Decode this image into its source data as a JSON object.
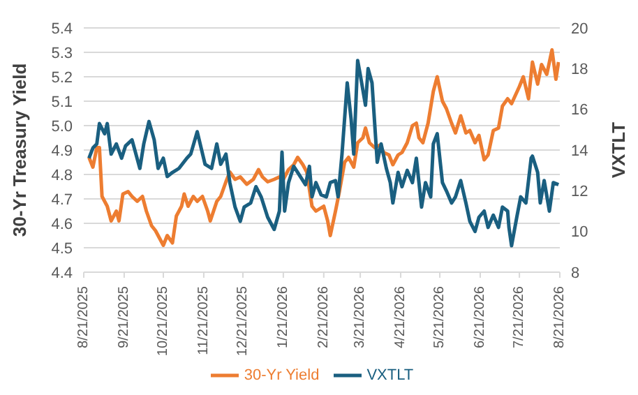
{
  "chart_data": {
    "type": "line",
    "ylabel": "30-Yr Treasury Yield",
    "y2label": "VXTLT",
    "grid": "y",
    "legend": "bottom",
    "marker": "none",
    "line_style": "solid",
    "xlim": [
      "2025-08-21",
      "2026-08-21"
    ],
    "xticks": [
      {
        "value": "2025-08-21",
        "label": "8/21/2025"
      },
      {
        "value": "2025-09-21",
        "label": "9/21/2025"
      },
      {
        "value": "2025-10-21",
        "label": "10/21/2025"
      },
      {
        "value": "2025-11-21",
        "label": "11/21/2025"
      },
      {
        "value": "2025-12-21",
        "label": "12/21/2025"
      },
      {
        "value": "2026-01-21",
        "label": "1/21/2026"
      },
      {
        "value": "2026-02-21",
        "label": "2/21/2026"
      },
      {
        "value": "2026-03-21",
        "label": "3/21/2026"
      },
      {
        "value": "2026-04-21",
        "label": "4/21/2026"
      },
      {
        "value": "2026-05-21",
        "label": "5/21/2026"
      },
      {
        "value": "2026-06-21",
        "label": "6/21/2026"
      },
      {
        "value": "2026-07-21",
        "label": "7/21/2026"
      },
      {
        "value": "2026-08-21",
        "label": "8/21/2026"
      }
    ],
    "ylim": [
      4.4,
      5.4
    ],
    "yticks": [
      4.4,
      4.5,
      4.6,
      4.7,
      4.8,
      4.9,
      {
        "value": 5,
        "label": "5.0"
      },
      5.1,
      5.2,
      5.3,
      5.4
    ],
    "y2lim": [
      8,
      20
    ],
    "y2ticks": [
      8,
      10,
      12,
      14,
      16,
      18,
      20
    ],
    "series": [
      {
        "name": "30-Yr Yield",
        "color": "#ed7d31",
        "x": [
          "2025-08-25",
          "2025-08-28",
          "2025-08-31",
          "2025-09-02",
          "2025-09-04",
          "2025-09-08",
          "2025-09-11",
          "2025-09-15",
          "2025-09-17",
          "2025-09-20",
          "2025-09-24",
          "2025-09-27",
          "2025-10-01",
          "2025-10-05",
          "2025-10-08",
          "2025-10-12",
          "2025-10-15",
          "2025-10-21",
          "2025-10-24",
          "2025-10-28",
          "2025-10-31",
          "2025-11-04",
          "2025-11-06",
          "2025-11-09",
          "2025-11-13",
          "2025-11-16",
          "2025-11-20",
          "2025-11-24",
          "2025-11-26",
          "2025-12-01",
          "2025-12-04",
          "2025-12-08",
          "2025-12-11",
          "2025-12-15",
          "2025-12-19",
          "2025-12-24",
          "2025-12-29",
          "2026-01-02",
          "2026-01-05",
          "2026-01-09",
          "2026-01-14",
          "2026-01-18",
          "2026-01-21",
          "2026-01-25",
          "2026-01-29",
          "2026-02-01",
          "2026-02-05",
          "2026-02-08",
          "2026-02-12",
          "2026-02-15",
          "2026-02-21",
          "2026-02-24",
          "2026-02-26",
          "2026-03-02",
          "2026-03-05",
          "2026-03-09",
          "2026-03-12",
          "2026-03-16",
          "2026-03-19",
          "2026-03-23",
          "2026-03-25",
          "2026-03-28",
          "2026-04-01",
          "2026-04-05",
          "2026-04-08",
          "2026-04-12",
          "2026-04-15",
          "2026-04-19",
          "2026-04-22",
          "2026-04-26",
          "2026-04-30",
          "2026-05-03",
          "2026-05-05",
          "2026-05-08",
          "2026-05-12",
          "2026-05-16",
          "2026-05-19",
          "2026-05-23",
          "2026-05-26",
          "2026-05-30",
          "2026-06-02",
          "2026-06-06",
          "2026-06-10",
          "2026-06-13",
          "2026-06-17",
          "2026-06-20",
          "2026-06-24",
          "2026-06-27",
          "2026-07-01",
          "2026-07-05",
          "2026-07-08",
          "2026-07-12",
          "2026-07-15",
          "2026-07-21",
          "2026-07-24",
          "2026-07-28",
          "2026-07-31",
          "2026-08-04",
          "2026-08-07",
          "2026-08-11",
          "2026-08-15",
          "2026-08-18",
          "2026-08-20"
        ],
        "values": [
          4.87,
          4.83,
          4.91,
          4.91,
          4.71,
          4.67,
          4.61,
          4.65,
          4.61,
          4.72,
          4.73,
          4.71,
          4.69,
          4.71,
          4.65,
          4.59,
          4.57,
          4.51,
          4.55,
          4.52,
          4.63,
          4.67,
          4.72,
          4.67,
          4.71,
          4.69,
          4.71,
          4.65,
          4.61,
          4.69,
          4.71,
          4.77,
          4.81,
          4.78,
          4.79,
          4.76,
          4.78,
          4.82,
          4.79,
          4.77,
          4.78,
          4.79,
          4.78,
          4.82,
          4.84,
          4.87,
          4.84,
          4.81,
          4.67,
          4.65,
          4.67,
          4.61,
          4.55,
          4.65,
          4.73,
          4.85,
          4.87,
          4.83,
          4.93,
          4.95,
          4.99,
          4.93,
          4.91,
          4.92,
          4.89,
          4.88,
          4.84,
          4.88,
          4.89,
          4.93,
          5.0,
          5.01,
          4.95,
          4.93,
          5.01,
          5.14,
          5.2,
          5.1,
          5.07,
          5.01,
          4.97,
          5.04,
          4.97,
          4.98,
          4.93,
          4.96,
          4.86,
          4.88,
          4.98,
          4.99,
          5.08,
          5.11,
          5.09,
          5.16,
          5.2,
          5.11,
          5.26,
          5.17,
          5.25,
          5.21,
          5.31,
          5.19,
          5.26
        ]
      },
      {
        "name": "VXTLT",
        "color": "#1a5f80",
        "axis": "y2",
        "x": [
          "2025-08-25",
          "2025-08-28",
          "2025-08-31",
          "2025-09-02",
          "2025-09-06",
          "2025-09-08",
          "2025-09-11",
          "2025-09-15",
          "2025-09-19",
          "2025-09-22",
          "2025-09-27",
          "2025-10-03",
          "2025-10-06",
          "2025-10-10",
          "2025-10-14",
          "2025-10-17",
          "2025-10-21",
          "2025-10-24",
          "2025-10-28",
          "2025-11-02",
          "2025-11-08",
          "2025-11-11",
          "2025-11-16",
          "2025-11-22",
          "2025-11-27",
          "2025-12-01",
          "2025-12-04",
          "2025-12-08",
          "2025-12-11",
          "2025-12-15",
          "2025-12-19",
          "2025-12-22",
          "2025-12-27",
          "2025-12-31",
          "2026-01-04",
          "2026-01-09",
          "2026-01-14",
          "2026-01-18",
          "2026-01-20",
          "2026-01-22",
          "2026-01-25",
          "2026-01-29",
          "2026-02-03",
          "2026-02-07",
          "2026-02-10",
          "2026-02-12",
          "2026-02-15",
          "2026-02-19",
          "2026-02-23",
          "2026-02-26",
          "2026-03-02",
          "2026-03-04",
          "2026-03-07",
          "2026-03-11",
          "2026-03-14",
          "2026-03-16",
          "2026-03-19",
          "2026-03-21",
          "2026-03-25",
          "2026-03-27",
          "2026-03-30",
          "2026-04-03",
          "2026-04-06",
          "2026-04-10",
          "2026-04-13",
          "2026-04-15",
          "2026-04-19",
          "2026-04-22",
          "2026-04-26",
          "2026-04-30",
          "2026-05-03",
          "2026-05-07",
          "2026-05-10",
          "2026-05-14",
          "2026-05-16",
          "2026-05-19",
          "2026-05-23",
          "2026-05-26",
          "2026-05-30",
          "2026-06-02",
          "2026-06-06",
          "2026-06-10",
          "2026-06-13",
          "2026-06-17",
          "2026-06-20",
          "2026-06-24",
          "2026-06-27",
          "2026-07-01",
          "2026-07-05",
          "2026-07-08",
          "2026-07-12",
          "2026-07-13",
          "2026-07-15",
          "2026-07-19",
          "2026-07-22",
          "2026-07-26",
          "2026-07-30",
          "2026-07-31",
          "2026-08-04",
          "2026-08-06",
          "2026-08-09",
          "2026-08-13",
          "2026-08-16",
          "2026-08-20"
        ],
        "values": [
          13.6,
          14.1,
          14.3,
          15.3,
          14.8,
          15.3,
          13.8,
          14.3,
          13.6,
          14.2,
          14.5,
          13.1,
          14.3,
          15.4,
          14.5,
          13.1,
          13.6,
          12.7,
          12.9,
          13.1,
          13.6,
          13.8,
          14.9,
          13.3,
          13.1,
          14.3,
          13.3,
          13.8,
          12.4,
          11.2,
          10.5,
          11.2,
          11.4,
          12.2,
          11.7,
          10.7,
          10.1,
          11.0,
          13.9,
          11.0,
          12.4,
          13.2,
          12.7,
          12.3,
          13.2,
          11.7,
          12.4,
          11.8,
          11.7,
          12.4,
          12.5,
          11.7,
          13.8,
          17.3,
          15.5,
          13.8,
          18.4,
          17.7,
          16.2,
          18.0,
          17.3,
          13.4,
          14.3,
          13.1,
          12.4,
          11.4,
          12.9,
          12.2,
          13.0,
          12.4,
          13.6,
          11.2,
          12.4,
          11.7,
          14.3,
          14.8,
          12.4,
          12.0,
          11.4,
          11.7,
          12.5,
          11.4,
          10.5,
          10.0,
          10.7,
          11.0,
          10.2,
          10.8,
          10.2,
          11.2,
          11.0,
          10.2,
          9.3,
          10.7,
          11.7,
          11.4,
          13.6,
          13.7,
          12.9,
          11.4,
          12.5,
          11.0,
          12.4,
          12.3
        ]
      }
    ]
  }
}
